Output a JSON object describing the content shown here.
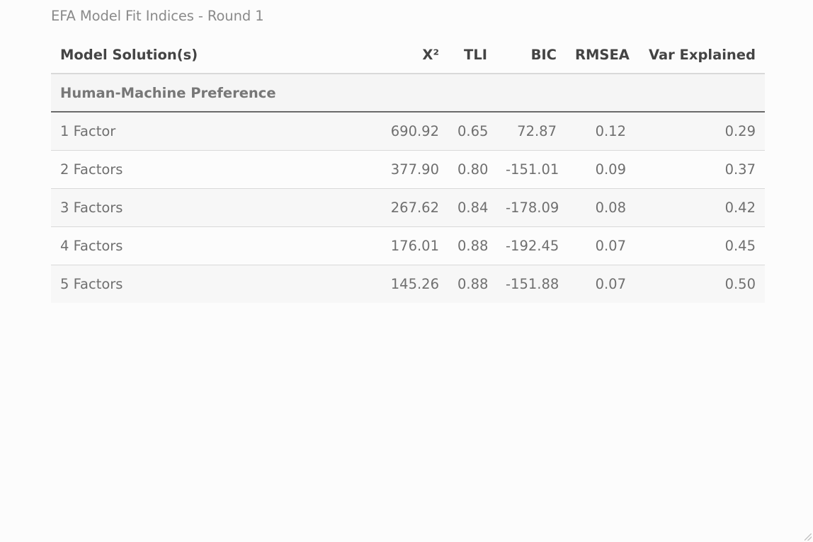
{
  "caption": "EFA Model Fit Indices - Round 1",
  "table": {
    "columns": [
      "Model Solution(s)",
      "X²",
      "TLI",
      "BIC",
      "RMSEA",
      "Var Explained"
    ],
    "group_label": "Human-Machine Preference",
    "rows": [
      {
        "model": "1 Factor",
        "chi2": "690.92",
        "tli": "0.65",
        "bic": "72.87",
        "rmsea": "0.12",
        "var": "0.29"
      },
      {
        "model": "2 Factors",
        "chi2": "377.90",
        "tli": "0.80",
        "bic": "-151.01",
        "rmsea": "0.09",
        "var": "0.37"
      },
      {
        "model": "3 Factors",
        "chi2": "267.62",
        "tli": "0.84",
        "bic": "-178.09",
        "rmsea": "0.08",
        "var": "0.42"
      },
      {
        "model": "4 Factors",
        "chi2": "176.01",
        "tli": "0.88",
        "bic": "-192.45",
        "rmsea": "0.07",
        "var": "0.45"
      },
      {
        "model": "5 Factors",
        "chi2": "145.26",
        "tli": "0.88",
        "bic": "-151.88",
        "rmsea": "0.07",
        "var": "0.50"
      }
    ]
  }
}
